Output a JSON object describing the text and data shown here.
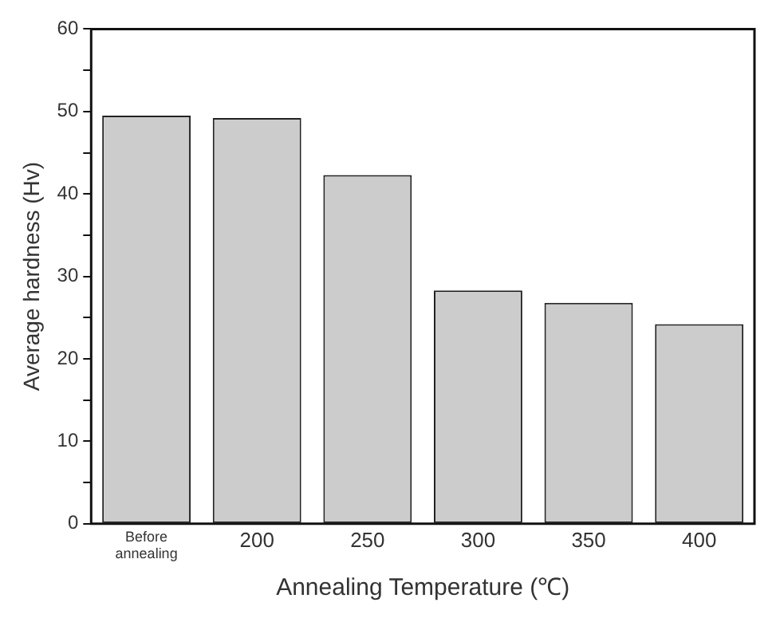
{
  "chart_data": {
    "type": "bar",
    "categories": [
      "Before annealing",
      "200",
      "250",
      "300",
      "350",
      "400"
    ],
    "values": [
      49.5,
      49.2,
      42.3,
      28.3,
      26.8,
      24.2
    ],
    "color": "#cccccc",
    "xlabel": "Annealing Temperature (℃)",
    "ylabel": "Average hardness (Hv)",
    "ylim": [
      0,
      60
    ],
    "yticks": [
      0,
      {
        "value": 5,
        "label": null
      },
      10,
      {
        "value": 15,
        "label": null
      },
      20,
      {
        "value": 25,
        "label": null
      },
      30,
      {
        "value": 35,
        "label": null
      },
      40,
      {
        "value": 45,
        "label": null
      },
      50,
      {
        "value": 55,
        "label": null
      },
      60
    ],
    "grid": false,
    "legend": false
  }
}
